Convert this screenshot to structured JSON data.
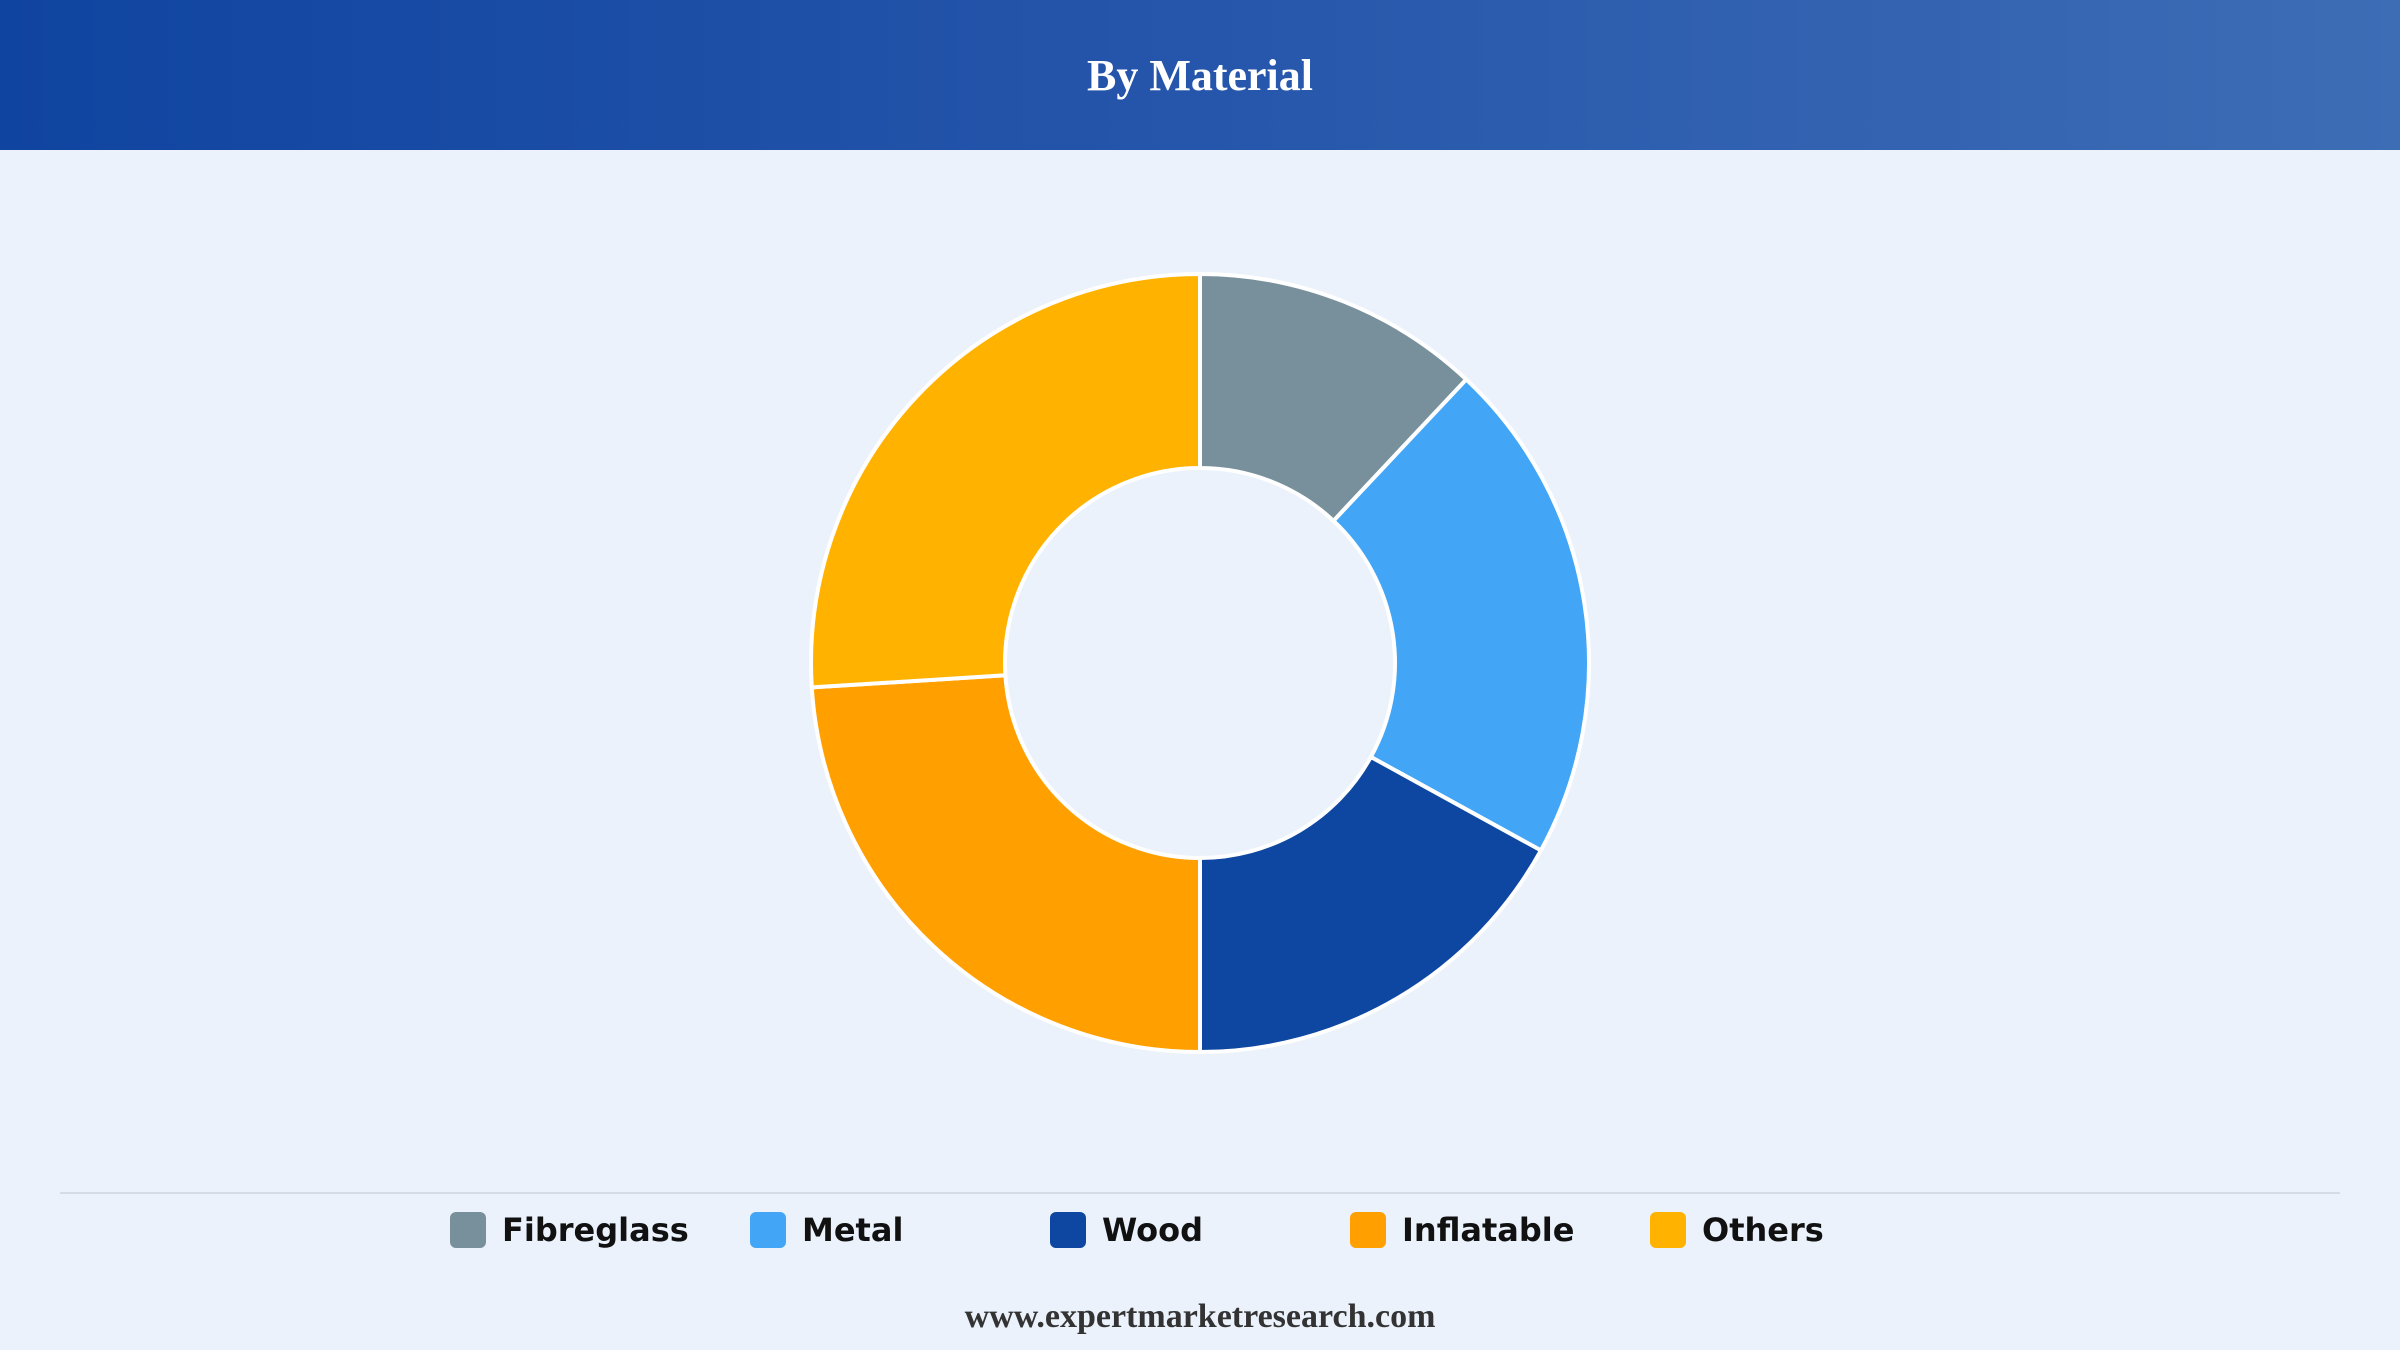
{
  "header": {
    "title": "By Material"
  },
  "chart_data": {
    "type": "pie",
    "title": "By Material",
    "donut": true,
    "categories": [
      "Fibreglass",
      "Metal",
      "Wood",
      "Inflatable",
      "Others"
    ],
    "values": [
      12,
      21,
      17,
      24,
      26
    ],
    "colors": [
      "#78909c",
      "#42a5f5",
      "#0d47a1",
      "#ffa000",
      "#ffb300"
    ],
    "legend": "bottom"
  },
  "legend": {
    "items": [
      {
        "label": "Fibreglass",
        "color": "#78909c"
      },
      {
        "label": "Metal",
        "color": "#42a5f5"
      },
      {
        "label": "Wood",
        "color": "#0d47a1"
      },
      {
        "label": "Inflatable",
        "color": "#ffa000"
      },
      {
        "label": "Others",
        "color": "#ffb300"
      }
    ]
  },
  "footer": {
    "url": "www.expertmarketresearch.com"
  }
}
